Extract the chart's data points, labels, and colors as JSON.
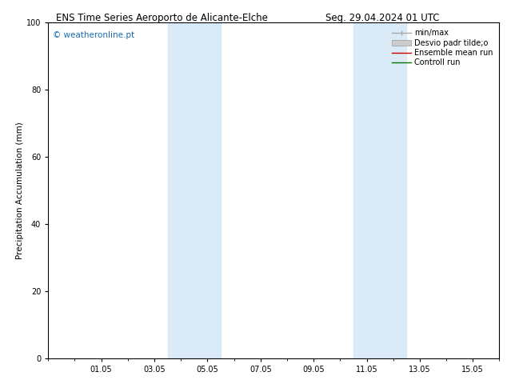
{
  "title_left": "ENS Time Series Aeroporto de Alicante-Elche",
  "title_right": "Seg. 29.04.2024 01 UTC",
  "ylabel": "Precipitation Accumulation (mm)",
  "watermark": "© weatheronline.pt",
  "ylim": [
    0,
    100
  ],
  "yticks": [
    0,
    20,
    40,
    60,
    80,
    100
  ],
  "xtick_labels": [
    "01.05",
    "03.05",
    "05.05",
    "07.05",
    "09.05",
    "11.05",
    "13.05",
    "15.05"
  ],
  "xtick_positions": [
    2,
    4,
    6,
    8,
    10,
    12,
    14,
    16
  ],
  "xmin": 0,
  "xmax": 17,
  "shaded_bands": [
    {
      "xmin": 4.5,
      "xmax": 6.5,
      "color": "#daeaf7",
      "alpha": 1.0
    },
    {
      "xmin": 11.5,
      "xmax": 13.5,
      "color": "#daeaf7",
      "alpha": 1.0
    }
  ],
  "legend_entries": [
    {
      "label": "min/max",
      "color": "#aaaaaa",
      "type": "line_with_caps"
    },
    {
      "label": "Desvio padr tilde;o",
      "color": "#cccccc",
      "type": "band"
    },
    {
      "label": "Ensemble mean run",
      "color": "#cc0000",
      "type": "line"
    },
    {
      "label": "Controll run",
      "color": "#007700",
      "type": "line"
    }
  ],
  "background_color": "#ffffff",
  "plot_bg_color": "#ffffff",
  "watermark_color": "#1a6bb5",
  "title_fontsize": 8.5,
  "axis_label_fontsize": 7.5,
  "tick_fontsize": 7,
  "legend_fontsize": 7,
  "watermark_fontsize": 7.5
}
